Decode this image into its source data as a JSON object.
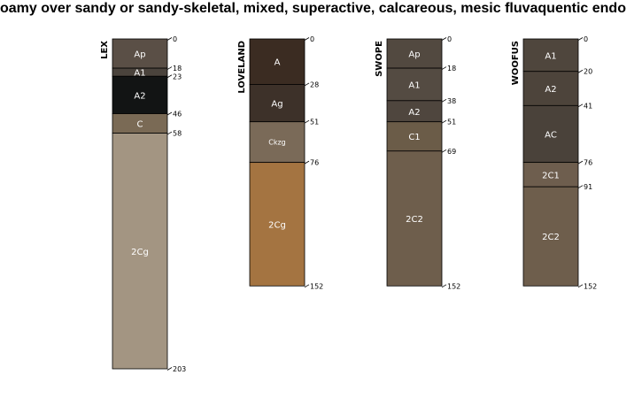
{
  "title": "oamy over sandy or sandy-skeletal, mixed, superactive, calcareous, mesic fluvaquentic endo",
  "profiles": [
    {
      "name": "LEX",
      "horizons": [
        {
          "label": "Ap",
          "top": 0,
          "bottom": 18,
          "color": "#5a4f46",
          "text": "#ffffff"
        },
        {
          "label": "A1",
          "top": 18,
          "bottom": 23,
          "color": "#4a433c",
          "text": "#ffffff"
        },
        {
          "label": "A2",
          "top": 23,
          "bottom": 46,
          "color": "#121414",
          "text": "#ffffff"
        },
        {
          "label": "C",
          "top": 46,
          "bottom": 58,
          "color": "#7a6a55",
          "text": "#ffffff"
        },
        {
          "label": "2Cg",
          "top": 58,
          "bottom": 203,
          "color": "#a39582",
          "text": "#ffffff"
        }
      ],
      "depth_labels": [
        "0",
        "18",
        "23",
        "46",
        "58",
        "203"
      ]
    },
    {
      "name": "LOVELAND",
      "horizons": [
        {
          "label": "A",
          "top": 0,
          "bottom": 28,
          "color": "#3b2c22",
          "text": "#ffffff"
        },
        {
          "label": "Ag",
          "top": 28,
          "bottom": 51,
          "color": "#3d3129",
          "text": "#ffffff"
        },
        {
          "label": "Ckzg",
          "top": 51,
          "bottom": 76,
          "color": "#7a6a58",
          "text": "#ffffff"
        },
        {
          "label": "2Cg",
          "top": 76,
          "bottom": 152,
          "color": "#a47441",
          "text": "#ffffff"
        }
      ],
      "depth_labels": [
        "0",
        "28",
        "51",
        "76",
        "152"
      ]
    },
    {
      "name": "SWOPE",
      "horizons": [
        {
          "label": "Ap",
          "top": 0,
          "bottom": 18,
          "color": "#524940",
          "text": "#ffffff"
        },
        {
          "label": "A1",
          "top": 18,
          "bottom": 38,
          "color": "#544b42",
          "text": "#ffffff"
        },
        {
          "label": "A2",
          "top": 38,
          "bottom": 51,
          "color": "#4f463e",
          "text": "#ffffff"
        },
        {
          "label": "C1",
          "top": 51,
          "bottom": 69,
          "color": "#6b5c48",
          "text": "#ffffff"
        },
        {
          "label": "2C2",
          "top": 69,
          "bottom": 152,
          "color": "#6e5e4c",
          "text": "#ffffff"
        }
      ],
      "depth_labels": [
        "0",
        "18",
        "38",
        "51",
        "69",
        "152"
      ]
    },
    {
      "name": "WOOFUS",
      "horizons": [
        {
          "label": "A1",
          "top": 0,
          "bottom": 20,
          "color": "#4f463d",
          "text": "#ffffff"
        },
        {
          "label": "A2",
          "top": 20,
          "bottom": 41,
          "color": "#4d443b",
          "text": "#ffffff"
        },
        {
          "label": "AC",
          "top": 41,
          "bottom": 76,
          "color": "#4a423a",
          "text": "#ffffff"
        },
        {
          "label": "2C1",
          "top": 76,
          "bottom": 91,
          "color": "#6e5e4e",
          "text": "#ffffff"
        },
        {
          "label": "2C2",
          "top": 91,
          "bottom": 152,
          "color": "#6e5e4c",
          "text": "#ffffff"
        }
      ],
      "depth_labels": [
        "0",
        "20",
        "41",
        "76",
        "91",
        "152"
      ]
    }
  ]
}
